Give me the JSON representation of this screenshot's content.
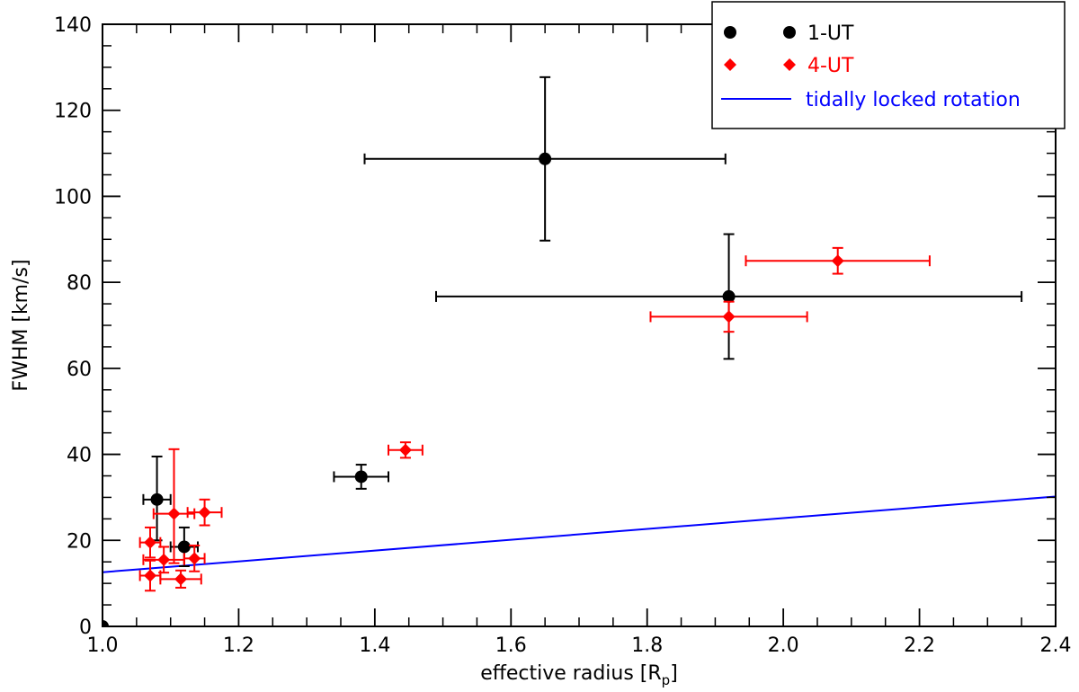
{
  "chart_data": {
    "type": "scatter",
    "xlabel": "effective radius [R",
    "xlabel_sub": "p",
    "xlabel_end": "]",
    "ylabel": "FWHM [km/s]",
    "xlim": [
      1.0,
      2.4
    ],
    "ylim": [
      0,
      140
    ],
    "x_ticks": [
      1.0,
      1.2,
      1.4,
      1.6,
      1.8,
      2.0,
      2.2,
      2.4
    ],
    "x_tick_labels": [
      "1.0",
      "1.2",
      "1.4",
      "1.6",
      "1.8",
      "2.0",
      "2.2",
      "2.4"
    ],
    "y_ticks": [
      0,
      20,
      40,
      60,
      80,
      100,
      120,
      140
    ],
    "y_tick_labels": [
      "0",
      "20",
      "40",
      "60",
      "80",
      "100",
      "120",
      "140"
    ],
    "x_minor_step": 0.05,
    "y_minor_step": 5,
    "grid": false,
    "legend_position": "top-right",
    "series": [
      {
        "name": "1-UT",
        "color": "#000000",
        "marker": "circle",
        "points": [
          {
            "x": 1.08,
            "y": 29.5,
            "xerr": [
              0.02,
              0.02
            ],
            "yerr": [
              9.5,
              10
            ]
          },
          {
            "x": 1.12,
            "y": 18.5,
            "xerr": [
              0.02,
              0.02
            ],
            "yerr": [
              4.5,
              4.5
            ]
          },
          {
            "x": 1.38,
            "y": 34.8,
            "xerr": [
              0.04,
              0.04
            ],
            "yerr": [
              2.8,
              2.8
            ]
          },
          {
            "x": 1.65,
            "y": 108.7,
            "xerr": [
              0.265,
              0.265
            ],
            "yerr": [
              19,
              19
            ]
          },
          {
            "x": 1.92,
            "y": 76.7,
            "xerr": [
              0.43,
              0.43
            ],
            "yerr": [
              14.5,
              14.5
            ]
          },
          {
            "x": 1.0,
            "y": 0.0,
            "xerr": [
              0,
              0
            ],
            "yerr": [
              0,
              0
            ]
          }
        ]
      },
      {
        "name": "4-UT",
        "color": "#ff0000",
        "marker": "diamond",
        "points": [
          {
            "x": 1.07,
            "y": 19.5,
            "xerr": [
              0.015,
              0.015
            ],
            "yerr": [
              3.5,
              3.5
            ]
          },
          {
            "x": 1.07,
            "y": 11.8,
            "xerr": [
              0.015,
              0.015
            ],
            "yerr": [
              3.5,
              3.5
            ]
          },
          {
            "x": 1.09,
            "y": 15.5,
            "xerr": [
              0.03,
              0.03
            ],
            "yerr": [
              3.0,
              3.0
            ]
          },
          {
            "x": 1.105,
            "y": 26.2,
            "xerr": [
              0.03,
              0.03
            ],
            "yerr": [
              11.5,
              15
            ]
          },
          {
            "x": 1.115,
            "y": 11.0,
            "xerr": [
              0.03,
              0.03
            ],
            "yerr": [
              2.0,
              2.0
            ]
          },
          {
            "x": 1.135,
            "y": 15.8,
            "xerr": [
              0.015,
              0.015
            ],
            "yerr": [
              3.0,
              3.0
            ]
          },
          {
            "x": 1.15,
            "y": 26.5,
            "xerr": [
              0.025,
              0.025
            ],
            "yerr": [
              3.0,
              3.0
            ]
          },
          {
            "x": 1.445,
            "y": 41.0,
            "xerr": [
              0.025,
              0.025
            ],
            "yerr": [
              1.8,
              1.8
            ]
          },
          {
            "x": 1.92,
            "y": 72.0,
            "xerr": [
              0.115,
              0.115
            ],
            "yerr": [
              3.5,
              3.5
            ]
          },
          {
            "x": 2.08,
            "y": 85.0,
            "xerr": [
              0.135,
              0.135
            ],
            "yerr": [
              3.0,
              3.0
            ]
          }
        ]
      },
      {
        "name": "tidally locked rotation",
        "color": "#0000ff",
        "marker": "line",
        "x": [
          1.0,
          2.4
        ],
        "y": [
          12.6,
          30.2
        ]
      }
    ]
  }
}
